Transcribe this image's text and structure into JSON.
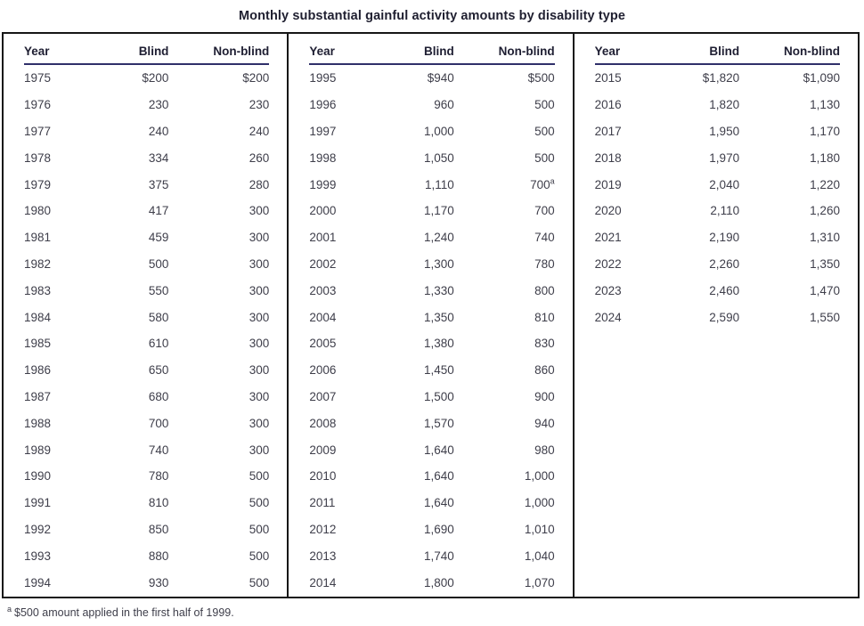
{
  "title": "Monthly substantial gainful activity amounts by disability type",
  "colors": {
    "border": "#161616",
    "header_text": "#1e1e32",
    "header_underline": "#30306a",
    "data_text": "#3e3e4a",
    "background": "#ffffff"
  },
  "table": {
    "header": {
      "year": "Year",
      "blind": "Blind",
      "non_blind": "Non-blind"
    },
    "panels": [
      {
        "rows": [
          {
            "year": "1975",
            "blind": "$200",
            "non_blind": "$200"
          },
          {
            "year": "1976",
            "blind": "230",
            "non_blind": "230"
          },
          {
            "year": "1977",
            "blind": "240",
            "non_blind": "240"
          },
          {
            "year": "1978",
            "blind": "334",
            "non_blind": "260"
          },
          {
            "year": "1979",
            "blind": "375",
            "non_blind": "280"
          },
          {
            "year": "1980",
            "blind": "417",
            "non_blind": "300"
          },
          {
            "year": "1981",
            "blind": "459",
            "non_blind": "300"
          },
          {
            "year": "1982",
            "blind": "500",
            "non_blind": "300"
          },
          {
            "year": "1983",
            "blind": "550",
            "non_blind": "300"
          },
          {
            "year": "1984",
            "blind": "580",
            "non_blind": "300"
          },
          {
            "year": "1985",
            "blind": "610",
            "non_blind": "300"
          },
          {
            "year": "1986",
            "blind": "650",
            "non_blind": "300"
          },
          {
            "year": "1987",
            "blind": "680",
            "non_blind": "300"
          },
          {
            "year": "1988",
            "blind": "700",
            "non_blind": "300"
          },
          {
            "year": "1989",
            "blind": "740",
            "non_blind": "300"
          },
          {
            "year": "1990",
            "blind": "780",
            "non_blind": "500"
          },
          {
            "year": "1991",
            "blind": "810",
            "non_blind": "500"
          },
          {
            "year": "1992",
            "blind": "850",
            "non_blind": "500"
          },
          {
            "year": "1993",
            "blind": "880",
            "non_blind": "500"
          },
          {
            "year": "1994",
            "blind": "930",
            "non_blind": "500"
          }
        ]
      },
      {
        "rows": [
          {
            "year": "1995",
            "blind": "$940",
            "non_blind": "$500"
          },
          {
            "year": "1996",
            "blind": "960",
            "non_blind": "500"
          },
          {
            "year": "1997",
            "blind": "1,000",
            "non_blind": "500"
          },
          {
            "year": "1998",
            "blind": "1,050",
            "non_blind": "500"
          },
          {
            "year": "1999",
            "blind": "1,110",
            "non_blind": "700",
            "note": "a"
          },
          {
            "year": "2000",
            "blind": "1,170",
            "non_blind": "700"
          },
          {
            "year": "2001",
            "blind": "1,240",
            "non_blind": "740"
          },
          {
            "year": "2002",
            "blind": "1,300",
            "non_blind": "780"
          },
          {
            "year": "2003",
            "blind": "1,330",
            "non_blind": "800"
          },
          {
            "year": "2004",
            "blind": "1,350",
            "non_blind": "810"
          },
          {
            "year": "2005",
            "blind": "1,380",
            "non_blind": "830"
          },
          {
            "year": "2006",
            "blind": "1,450",
            "non_blind": "860"
          },
          {
            "year": "2007",
            "blind": "1,500",
            "non_blind": "900"
          },
          {
            "year": "2008",
            "blind": "1,570",
            "non_blind": "940"
          },
          {
            "year": "2009",
            "blind": "1,640",
            "non_blind": "980"
          },
          {
            "year": "2010",
            "blind": "1,640",
            "non_blind": "1,000"
          },
          {
            "year": "2011",
            "blind": "1,640",
            "non_blind": "1,000"
          },
          {
            "year": "2012",
            "blind": "1,690",
            "non_blind": "1,010"
          },
          {
            "year": "2013",
            "blind": "1,740",
            "non_blind": "1,040"
          },
          {
            "year": "2014",
            "blind": "1,800",
            "non_blind": "1,070"
          }
        ]
      },
      {
        "rows": [
          {
            "year": "2015",
            "blind": "$1,820",
            "non_blind": "$1,090"
          },
          {
            "year": "2016",
            "blind": "1,820",
            "non_blind": "1,130"
          },
          {
            "year": "2017",
            "blind": "1,950",
            "non_blind": "1,170"
          },
          {
            "year": "2018",
            "blind": "1,970",
            "non_blind": "1,180"
          },
          {
            "year": "2019",
            "blind": "2,040",
            "non_blind": "1,220"
          },
          {
            "year": "2020",
            "blind": "2,110",
            "non_blind": "1,260"
          },
          {
            "year": "2021",
            "blind": "2,190",
            "non_blind": "1,310"
          },
          {
            "year": "2022",
            "blind": "2,260",
            "non_blind": "1,350"
          },
          {
            "year": "2023",
            "blind": "2,460",
            "non_blind": "1,470"
          },
          {
            "year": "2024",
            "blind": "2,590",
            "non_blind": "1,550"
          }
        ]
      }
    ]
  },
  "footnote": {
    "marker": "a",
    "text": "$500 amount applied in the first half of 1999."
  }
}
